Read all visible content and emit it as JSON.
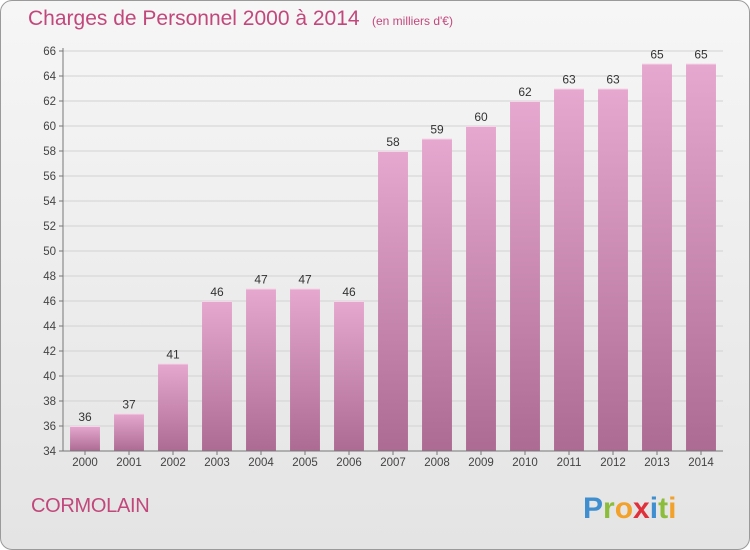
{
  "header": {
    "title": "Charges de Personnel 2000 à 2014",
    "unit": "(en milliers d'€)"
  },
  "footer": {
    "commune": "CORMOLAIN",
    "brand": "Proxiti"
  },
  "colors": {
    "accent": "#c2487c",
    "bar_top": "#e6a8cf",
    "bar_bottom": "#ac6b93",
    "brand_p": "#3f8fd0",
    "brand_r": "#8bbd3a",
    "brand_o": "#f2a12a",
    "brand_x": "#e0313a",
    "brand_i": "#3f8fd0",
    "brand_t": "#8bbd3a"
  },
  "chart_data": {
    "type": "bar",
    "title": "Charges de Personnel 2000 à 2014",
    "subtitle": "(en milliers d'€)",
    "categories": [
      "2000",
      "2001",
      "2002",
      "2003",
      "2004",
      "2005",
      "2006",
      "2007",
      "2008",
      "2009",
      "2010",
      "2011",
      "2012",
      "2013",
      "2014"
    ],
    "values": [
      36,
      37,
      41,
      46,
      47,
      47,
      46,
      58,
      59,
      60,
      62,
      63,
      63,
      65,
      65
    ],
    "ylim": [
      34,
      66
    ],
    "yticks": [
      34,
      36,
      38,
      40,
      42,
      44,
      46,
      48,
      50,
      52,
      54,
      56,
      58,
      60,
      62,
      64,
      66
    ],
    "grid": true,
    "legend": "none"
  }
}
